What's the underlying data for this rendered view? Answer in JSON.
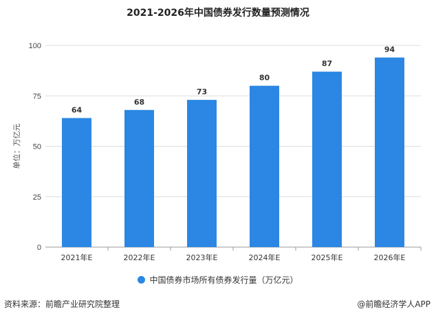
{
  "chart_data": {
    "type": "bar",
    "title": "2021-2026年中国债券发行数量预测情况",
    "categories": [
      "2021年E",
      "2022年E",
      "2023年E",
      "2024年E",
      "2025年E",
      "2026年E"
    ],
    "series": [
      {
        "name": "中国债券市场所有债券发行量（万亿元）",
        "values": [
          64,
          68,
          73,
          80,
          87,
          94
        ]
      }
    ],
    "ylabel": "单位：万亿元",
    "xlabel": "",
    "ylim": [
      0,
      100
    ],
    "yticks": [
      0,
      25,
      50,
      75,
      100
    ],
    "grid": true,
    "legend": "bottom",
    "bar_color": "#2b87e3"
  },
  "footer": {
    "source": "资料来源：前瞻产业研究院整理",
    "credit": "@前瞻经济学人APP"
  }
}
